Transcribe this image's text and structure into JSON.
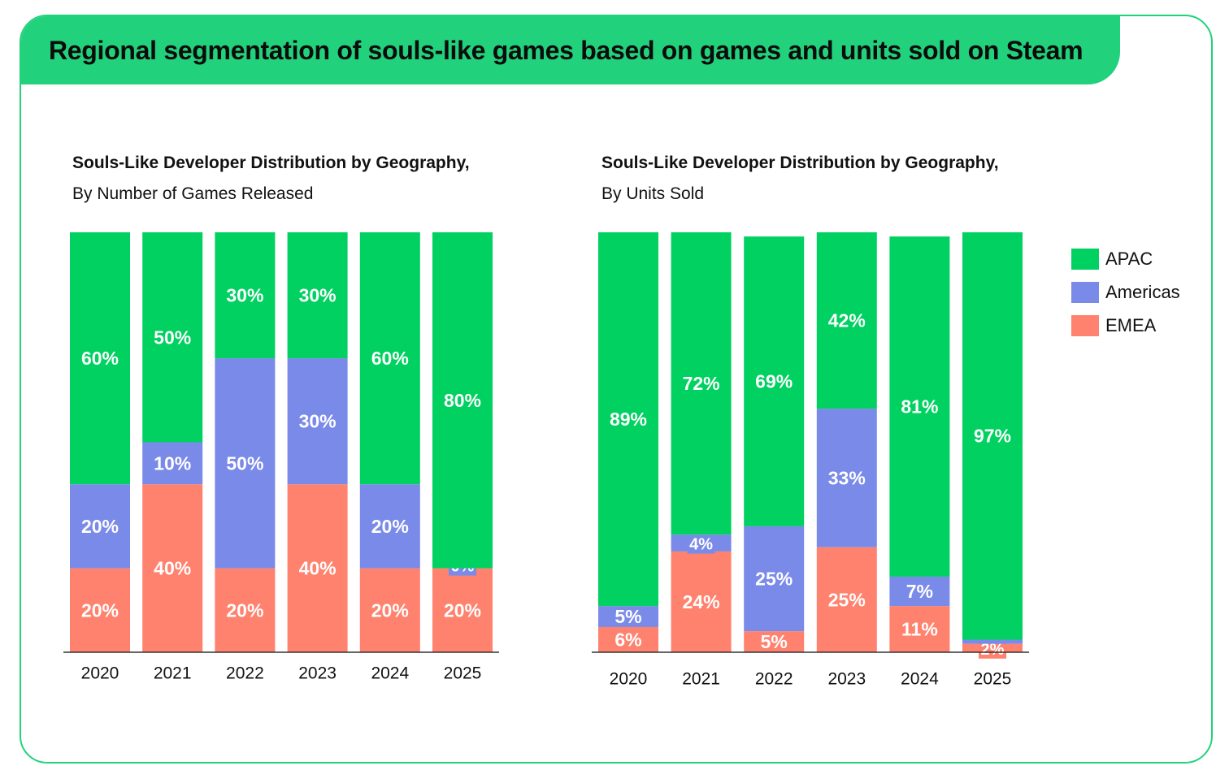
{
  "header": {
    "title": "Regional segmentation of souls-like games based on games and units sold on Steam"
  },
  "colors": {
    "banner": "#22d17c",
    "APAC": "#00d160",
    "Americas": "#7a8ae8",
    "EMEA": "#ff826e"
  },
  "legend": {
    "items": [
      {
        "label": "APAC",
        "color": "#00d160"
      },
      {
        "label": "Americas",
        "color": "#7a8ae8"
      },
      {
        "label": "EMEA",
        "color": "#ff826e"
      }
    ],
    "placement": "right"
  },
  "chart_data": [
    {
      "type": "bar",
      "stacked": true,
      "title": "Souls-Like Developer Distribution by Geography,",
      "subtitle": "By Number of Games Released",
      "categories": [
        "2020",
        "2021",
        "2022",
        "2023",
        "2024",
        "2025"
      ],
      "ylim": [
        0,
        100
      ],
      "series": [
        {
          "name": "EMEA",
          "values": [
            20,
            40,
            20,
            40,
            20,
            20
          ],
          "labels": [
            "20%",
            "40%",
            "20%",
            "40%",
            "20%",
            "20%"
          ]
        },
        {
          "name": "Americas",
          "values": [
            20,
            10,
            50,
            30,
            20,
            0
          ],
          "labels": [
            "20%",
            "10%",
            "50%",
            "30%",
            "20%",
            "0%"
          ]
        },
        {
          "name": "APAC",
          "values": [
            60,
            50,
            30,
            30,
            60,
            80
          ],
          "labels": [
            "60%",
            "50%",
            "30%",
            "30%",
            "60%",
            "80%"
          ]
        }
      ]
    },
    {
      "type": "bar",
      "stacked": true,
      "title": "Souls-Like Developer Distribution by Geography,",
      "subtitle": "By Units Sold",
      "categories": [
        "2020",
        "2021",
        "2022",
        "2023",
        "2024",
        "2025"
      ],
      "ylim": [
        0,
        100
      ],
      "series": [
        {
          "name": "EMEA",
          "values": [
            6,
            24,
            5,
            25,
            11,
            2
          ],
          "labels": [
            "6%",
            "24%",
            "5%",
            "25%",
            "11%",
            "2%"
          ]
        },
        {
          "name": "Americas",
          "values": [
            5,
            4,
            25,
            33,
            7,
            1
          ],
          "labels": [
            "5%",
            "4%",
            "25%",
            "33%",
            "7%",
            ""
          ]
        },
        {
          "name": "APAC",
          "values": [
            89,
            72,
            69,
            42,
            81,
            97
          ],
          "labels": [
            "89%",
            "72%",
            "69%",
            "42%",
            "81%",
            "97%"
          ]
        }
      ]
    }
  ]
}
